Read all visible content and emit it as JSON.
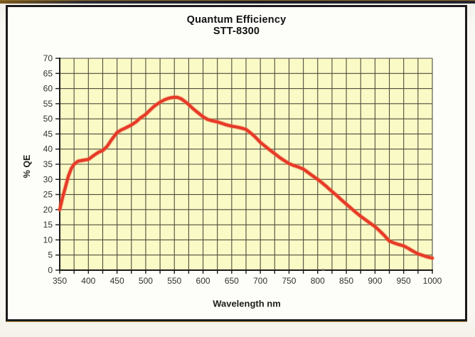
{
  "page": {
    "title_line1": "Quantum Efficiency",
    "title_line2": "STT-8300"
  },
  "chart_data": {
    "type": "line",
    "title": "Quantum Efficiency STT-8300",
    "xlabel": "Wavelength nm",
    "ylabel": "% QE",
    "xlim": [
      350,
      1000
    ],
    "ylim": [
      0,
      70
    ],
    "x_minor_tick_step": 25,
    "y_tick_step": 5,
    "grid": "on (every 25 nm vertical, every 5 %QE horizontal)",
    "legend": "none",
    "x_tick_labels": [
      350,
      400,
      450,
      500,
      550,
      600,
      650,
      700,
      750,
      800,
      850,
      900,
      950,
      1000
    ],
    "y_tick_labels": [
      0,
      5,
      10,
      15,
      20,
      25,
      30,
      35,
      40,
      45,
      50,
      55,
      60,
      65,
      70
    ],
    "series": [
      {
        "name": "STT-8300 quantum efficiency",
        "points": [
          [
            350,
            20
          ],
          [
            355,
            24
          ],
          [
            360,
            27.5
          ],
          [
            365,
            31
          ],
          [
            370,
            33.5
          ],
          [
            375,
            35
          ],
          [
            382,
            36
          ],
          [
            390,
            36.3
          ],
          [
            400,
            36.6
          ],
          [
            410,
            38
          ],
          [
            418,
            39
          ],
          [
            425,
            39.5
          ],
          [
            433,
            41
          ],
          [
            440,
            43
          ],
          [
            450,
            45.5
          ],
          [
            457,
            46.3
          ],
          [
            465,
            47
          ],
          [
            475,
            48
          ],
          [
            483,
            49
          ],
          [
            490,
            50.2
          ],
          [
            500,
            51.5
          ],
          [
            508,
            53
          ],
          [
            515,
            54.2
          ],
          [
            525,
            55.5
          ],
          [
            533,
            56.3
          ],
          [
            540,
            56.8
          ],
          [
            548,
            57.1
          ],
          [
            555,
            57.1
          ],
          [
            562,
            56.6
          ],
          [
            570,
            55.5
          ],
          [
            575,
            54.7
          ],
          [
            583,
            53.3
          ],
          [
            590,
            52.2
          ],
          [
            600,
            50.7
          ],
          [
            608,
            49.8
          ],
          [
            615,
            49.4
          ],
          [
            625,
            49
          ],
          [
            633,
            48.5
          ],
          [
            641,
            48
          ],
          [
            650,
            47.6
          ],
          [
            658,
            47.3
          ],
          [
            666,
            47
          ],
          [
            675,
            46.5
          ],
          [
            682,
            45.5
          ],
          [
            690,
            44.2
          ],
          [
            700,
            42.2
          ],
          [
            708,
            41
          ],
          [
            716,
            39.8
          ],
          [
            725,
            38.5
          ],
          [
            733,
            37.3
          ],
          [
            741,
            36.3
          ],
          [
            750,
            35.2
          ],
          [
            758,
            34.6
          ],
          [
            766,
            34.1
          ],
          [
            775,
            33.4
          ],
          [
            783,
            32.3
          ],
          [
            791,
            31.2
          ],
          [
            800,
            30
          ],
          [
            808,
            28.8
          ],
          [
            816,
            27.5
          ],
          [
            825,
            26
          ],
          [
            833,
            24.7
          ],
          [
            841,
            23.3
          ],
          [
            850,
            21.8
          ],
          [
            858,
            20.5
          ],
          [
            866,
            19.2
          ],
          [
            875,
            17.8
          ],
          [
            883,
            16.7
          ],
          [
            891,
            15.6
          ],
          [
            900,
            14.4
          ],
          [
            908,
            13
          ],
          [
            916,
            11.5
          ],
          [
            925,
            9.6
          ],
          [
            933,
            9
          ],
          [
            941,
            8.5
          ],
          [
            950,
            8
          ],
          [
            958,
            7.2
          ],
          [
            966,
            6.3
          ],
          [
            975,
            5.4
          ],
          [
            983,
            4.9
          ],
          [
            991,
            4.4
          ],
          [
            1000,
            4
          ]
        ]
      }
    ],
    "colors": {
      "plot_bg": "#fafac6",
      "grid": "#4f4d3d",
      "axis": "#1a1a18",
      "curve": "#e63a28",
      "curve_halo": "#f08055",
      "tick_text": "#33322a",
      "frame_border": "#1b1b1d"
    }
  }
}
